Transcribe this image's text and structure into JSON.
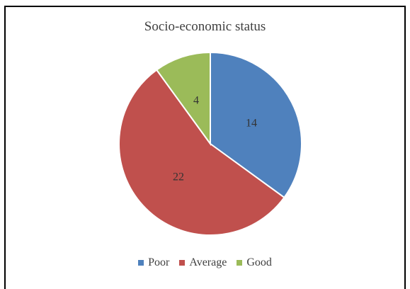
{
  "chart_data": {
    "type": "pie",
    "title": "Socio-economic status",
    "categories": [
      "Poor",
      "Average",
      "Good"
    ],
    "values": [
      14,
      22,
      4
    ],
    "colors": [
      "#4F81BD",
      "#C0504D",
      "#9BBB59"
    ],
    "data_labels": [
      "14",
      "22",
      "4"
    ],
    "legend_position": "bottom"
  }
}
